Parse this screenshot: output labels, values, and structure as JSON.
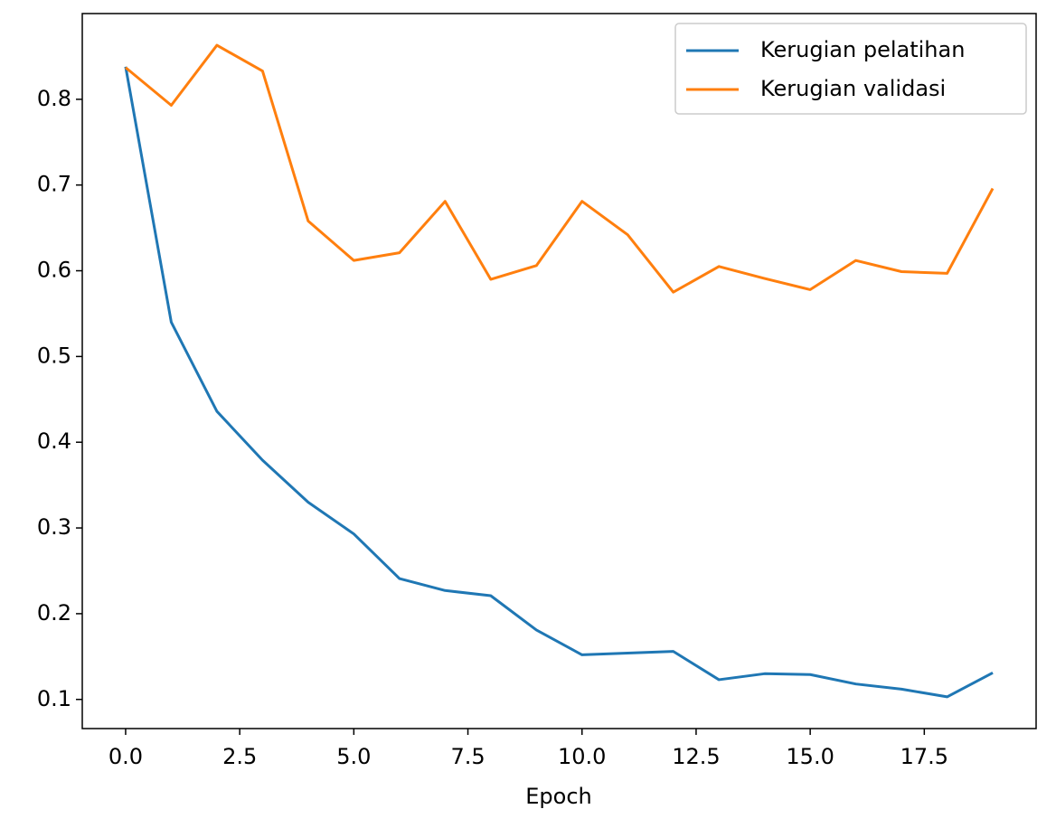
{
  "chart_data": {
    "type": "line",
    "x_label": "Epoch",
    "x": [
      0,
      1,
      2,
      3,
      4,
      5,
      6,
      7,
      8,
      9,
      10,
      11,
      12,
      13,
      14,
      15,
      16,
      17,
      18,
      19
    ],
    "series": [
      {
        "name": "Kerugian pelatihan",
        "color": "#1f77b4",
        "values": [
          0.838,
          0.54,
          0.436,
          0.379,
          0.33,
          0.293,
          0.241,
          0.227,
          0.221,
          0.181,
          0.152,
          0.154,
          0.156,
          0.123,
          0.13,
          0.129,
          0.118,
          0.112,
          0.103,
          0.131
        ]
      },
      {
        "name": "Kerugian validasi",
        "color": "#ff7f0e",
        "values": [
          0.837,
          0.793,
          0.863,
          0.833,
          0.658,
          0.612,
          0.621,
          0.681,
          0.59,
          0.606,
          0.681,
          0.642,
          0.575,
          0.605,
          0.591,
          0.578,
          0.612,
          0.599,
          0.597,
          0.696
        ]
      }
    ],
    "xlim": [
      -0.95,
      19.95
    ],
    "ylim": [
      0.066,
      0.9
    ],
    "xticks": [
      {
        "value": 0,
        "label": "0.0"
      },
      2.5,
      {
        "value": 5,
        "label": "5.0"
      },
      7.5,
      {
        "value": 10,
        "label": "10.0"
      },
      12.5,
      {
        "value": 15,
        "label": "15.0"
      },
      17.5
    ],
    "yticks": [
      0.1,
      0.2,
      0.3,
      0.4,
      0.5,
      0.6,
      0.7,
      0.8
    ],
    "legend": "upper right"
  }
}
